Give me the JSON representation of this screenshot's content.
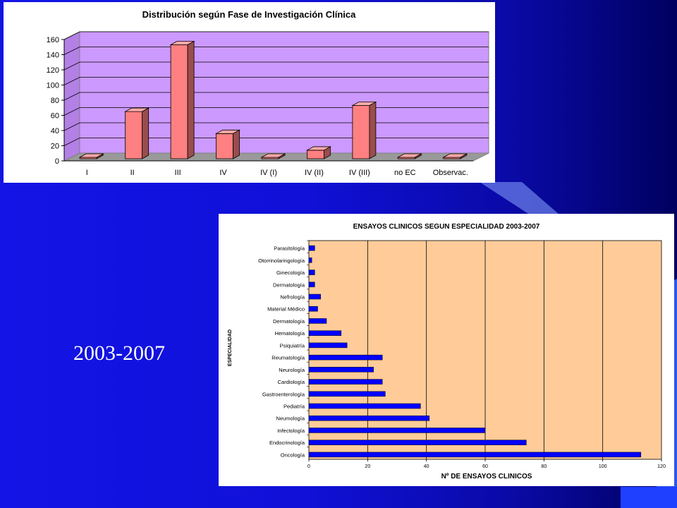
{
  "slide": {
    "label": "2003-2007"
  },
  "chart_data": [
    {
      "type": "bar",
      "title": "Distribución según Fase de Investigación Clínica",
      "categories": [
        "I",
        "II",
        "III",
        "IV",
        "IV (I)",
        "IV (II)",
        "IV (III)",
        "no EC",
        "Observac."
      ],
      "values": [
        4,
        65,
        153,
        36,
        1,
        14,
        73,
        2,
        1
      ],
      "ylim": [
        0,
        160
      ],
      "yticks": [
        "0",
        "20",
        "40",
        "60",
        "80",
        "100",
        "120",
        "140",
        "160"
      ],
      "grid": true,
      "colors": {
        "bar": "#ff8080",
        "wall": "#cc99ff",
        "floor": "#999999"
      }
    },
    {
      "type": "bar",
      "orientation": "horizontal",
      "title": "ENSAYOS CLINICOS SEGUN ESPECIALIDAD 2003-2007",
      "xlabel": "Nº DE ENSAYOS CLINICOS",
      "ylabel": "ESPECIALIDAD",
      "categories": [
        "Parasitología",
        "Otorrinolaringología",
        "Ginecología",
        "Dermatología",
        "Nefrología",
        "Material Médico",
        "Dermatología",
        "Hematología",
        "Psiquiatría",
        "Reumatología",
        "Neurología",
        "Cardiología",
        "Gastroenterología",
        "Pediatría",
        "Neumología",
        "Infectología",
        "Endocrinología",
        "Oncología"
      ],
      "values": [
        2,
        1,
        2,
        2,
        4,
        3,
        6,
        11,
        13,
        25,
        22,
        25,
        26,
        38,
        41,
        60,
        74,
        113
      ],
      "xlim": [
        0,
        120
      ],
      "xticks": [
        "0",
        "20",
        "40",
        "60",
        "80",
        "100",
        "120"
      ],
      "grid": true,
      "colors": {
        "bar": "#0000ff",
        "plot": "#ffcc99"
      }
    }
  ]
}
